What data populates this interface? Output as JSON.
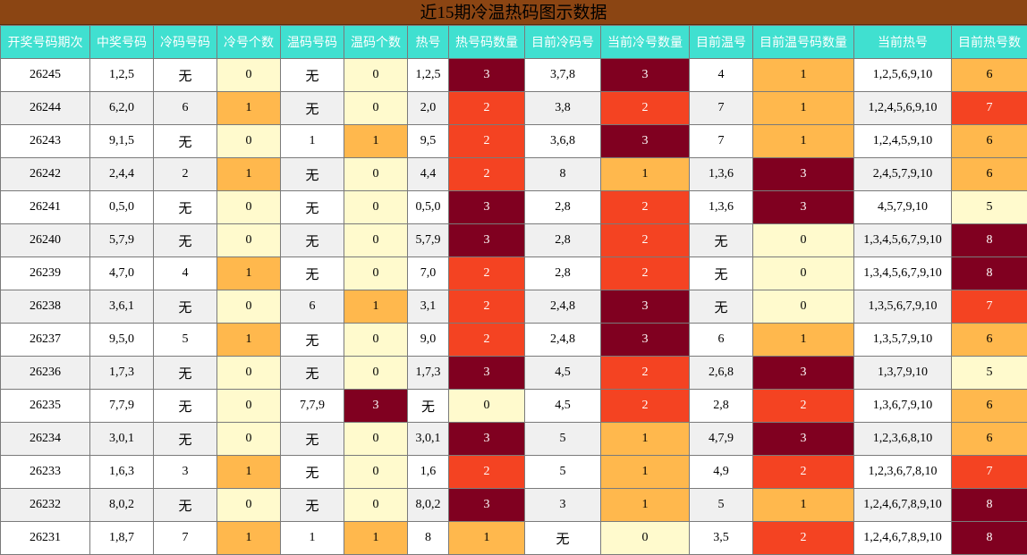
{
  "title": "近15期冷温热码图示数据",
  "headers": [
    "开奖号码期次",
    "中奖号码",
    "冷码号码",
    "冷号个数",
    "温码号码",
    "温码个数",
    "热号",
    "热号码数量",
    "目前冷码号",
    "当前冷号数量",
    "目前温号",
    "目前温号码数量",
    "当前热号",
    "目前热号数"
  ],
  "rows": [
    [
      "26245",
      "1,2,5",
      "无",
      "0",
      "无",
      "0",
      "1,2,5",
      "3",
      "3,7,8",
      "3",
      "4",
      "1",
      "1,2,5,6,9,10",
      "6"
    ],
    [
      "26244",
      "6,2,0",
      "6",
      "1",
      "无",
      "0",
      "2,0",
      "2",
      "3,8",
      "2",
      "7",
      "1",
      "1,2,4,5,6,9,10",
      "7"
    ],
    [
      "26243",
      "9,1,5",
      "无",
      "0",
      "1",
      "1",
      "9,5",
      "2",
      "3,6,8",
      "3",
      "7",
      "1",
      "1,2,4,5,9,10",
      "6"
    ],
    [
      "26242",
      "2,4,4",
      "2",
      "1",
      "无",
      "0",
      "4,4",
      "2",
      "8",
      "1",
      "1,3,6",
      "3",
      "2,4,5,7,9,10",
      "6"
    ],
    [
      "26241",
      "0,5,0",
      "无",
      "0",
      "无",
      "0",
      "0,5,0",
      "3",
      "2,8",
      "2",
      "1,3,6",
      "3",
      "4,5,7,9,10",
      "5"
    ],
    [
      "26240",
      "5,7,9",
      "无",
      "0",
      "无",
      "0",
      "5,7,9",
      "3",
      "2,8",
      "2",
      "无",
      "0",
      "1,3,4,5,6,7,9,10",
      "8"
    ],
    [
      "26239",
      "4,7,0",
      "4",
      "1",
      "无",
      "0",
      "7,0",
      "2",
      "2,8",
      "2",
      "无",
      "0",
      "1,3,4,5,6,7,9,10",
      "8"
    ],
    [
      "26238",
      "3,6,1",
      "无",
      "0",
      "6",
      "1",
      "3,1",
      "2",
      "2,4,8",
      "3",
      "无",
      "0",
      "1,3,5,6,7,9,10",
      "7"
    ],
    [
      "26237",
      "9,5,0",
      "5",
      "1",
      "无",
      "0",
      "9,0",
      "2",
      "2,4,8",
      "3",
      "6",
      "1",
      "1,3,5,7,9,10",
      "6"
    ],
    [
      "26236",
      "1,7,3",
      "无",
      "0",
      "无",
      "0",
      "1,7,3",
      "3",
      "4,5",
      "2",
      "2,6,8",
      "3",
      "1,3,7,9,10",
      "5"
    ],
    [
      "26235",
      "7,7,9",
      "无",
      "0",
      "7,7,9",
      "3",
      "无",
      "0",
      "4,5",
      "2",
      "2,8",
      "2",
      "1,3,6,7,9,10",
      "6"
    ],
    [
      "26234",
      "3,0,1",
      "无",
      "0",
      "无",
      "0",
      "3,0,1",
      "3",
      "5",
      "1",
      "4,7,9",
      "3",
      "1,2,3,6,8,10",
      "6"
    ],
    [
      "26233",
      "1,6,3",
      "3",
      "1",
      "无",
      "0",
      "1,6",
      "2",
      "5",
      "1",
      "4,9",
      "2",
      "1,2,3,6,7,8,10",
      "7"
    ],
    [
      "26232",
      "8,0,2",
      "无",
      "0",
      "无",
      "0",
      "8,0,2",
      "3",
      "3",
      "1",
      "5",
      "1",
      "1,2,4,6,7,8,9,10",
      "8"
    ],
    [
      "26231",
      "1,8,7",
      "7",
      "1",
      "1",
      "1",
      "8",
      "1",
      "无",
      "0",
      "3,5",
      "2",
      "1,2,4,6,7,8,9,10",
      "8"
    ]
  ],
  "level_colors": {
    "0": "#fffacd",
    "1": "#ffb84d",
    "2": "#f44322",
    "3": "#800020",
    "5": "#fffacd",
    "6": "#ffb84d",
    "7": "#f44322",
    "8": "#800020"
  }
}
